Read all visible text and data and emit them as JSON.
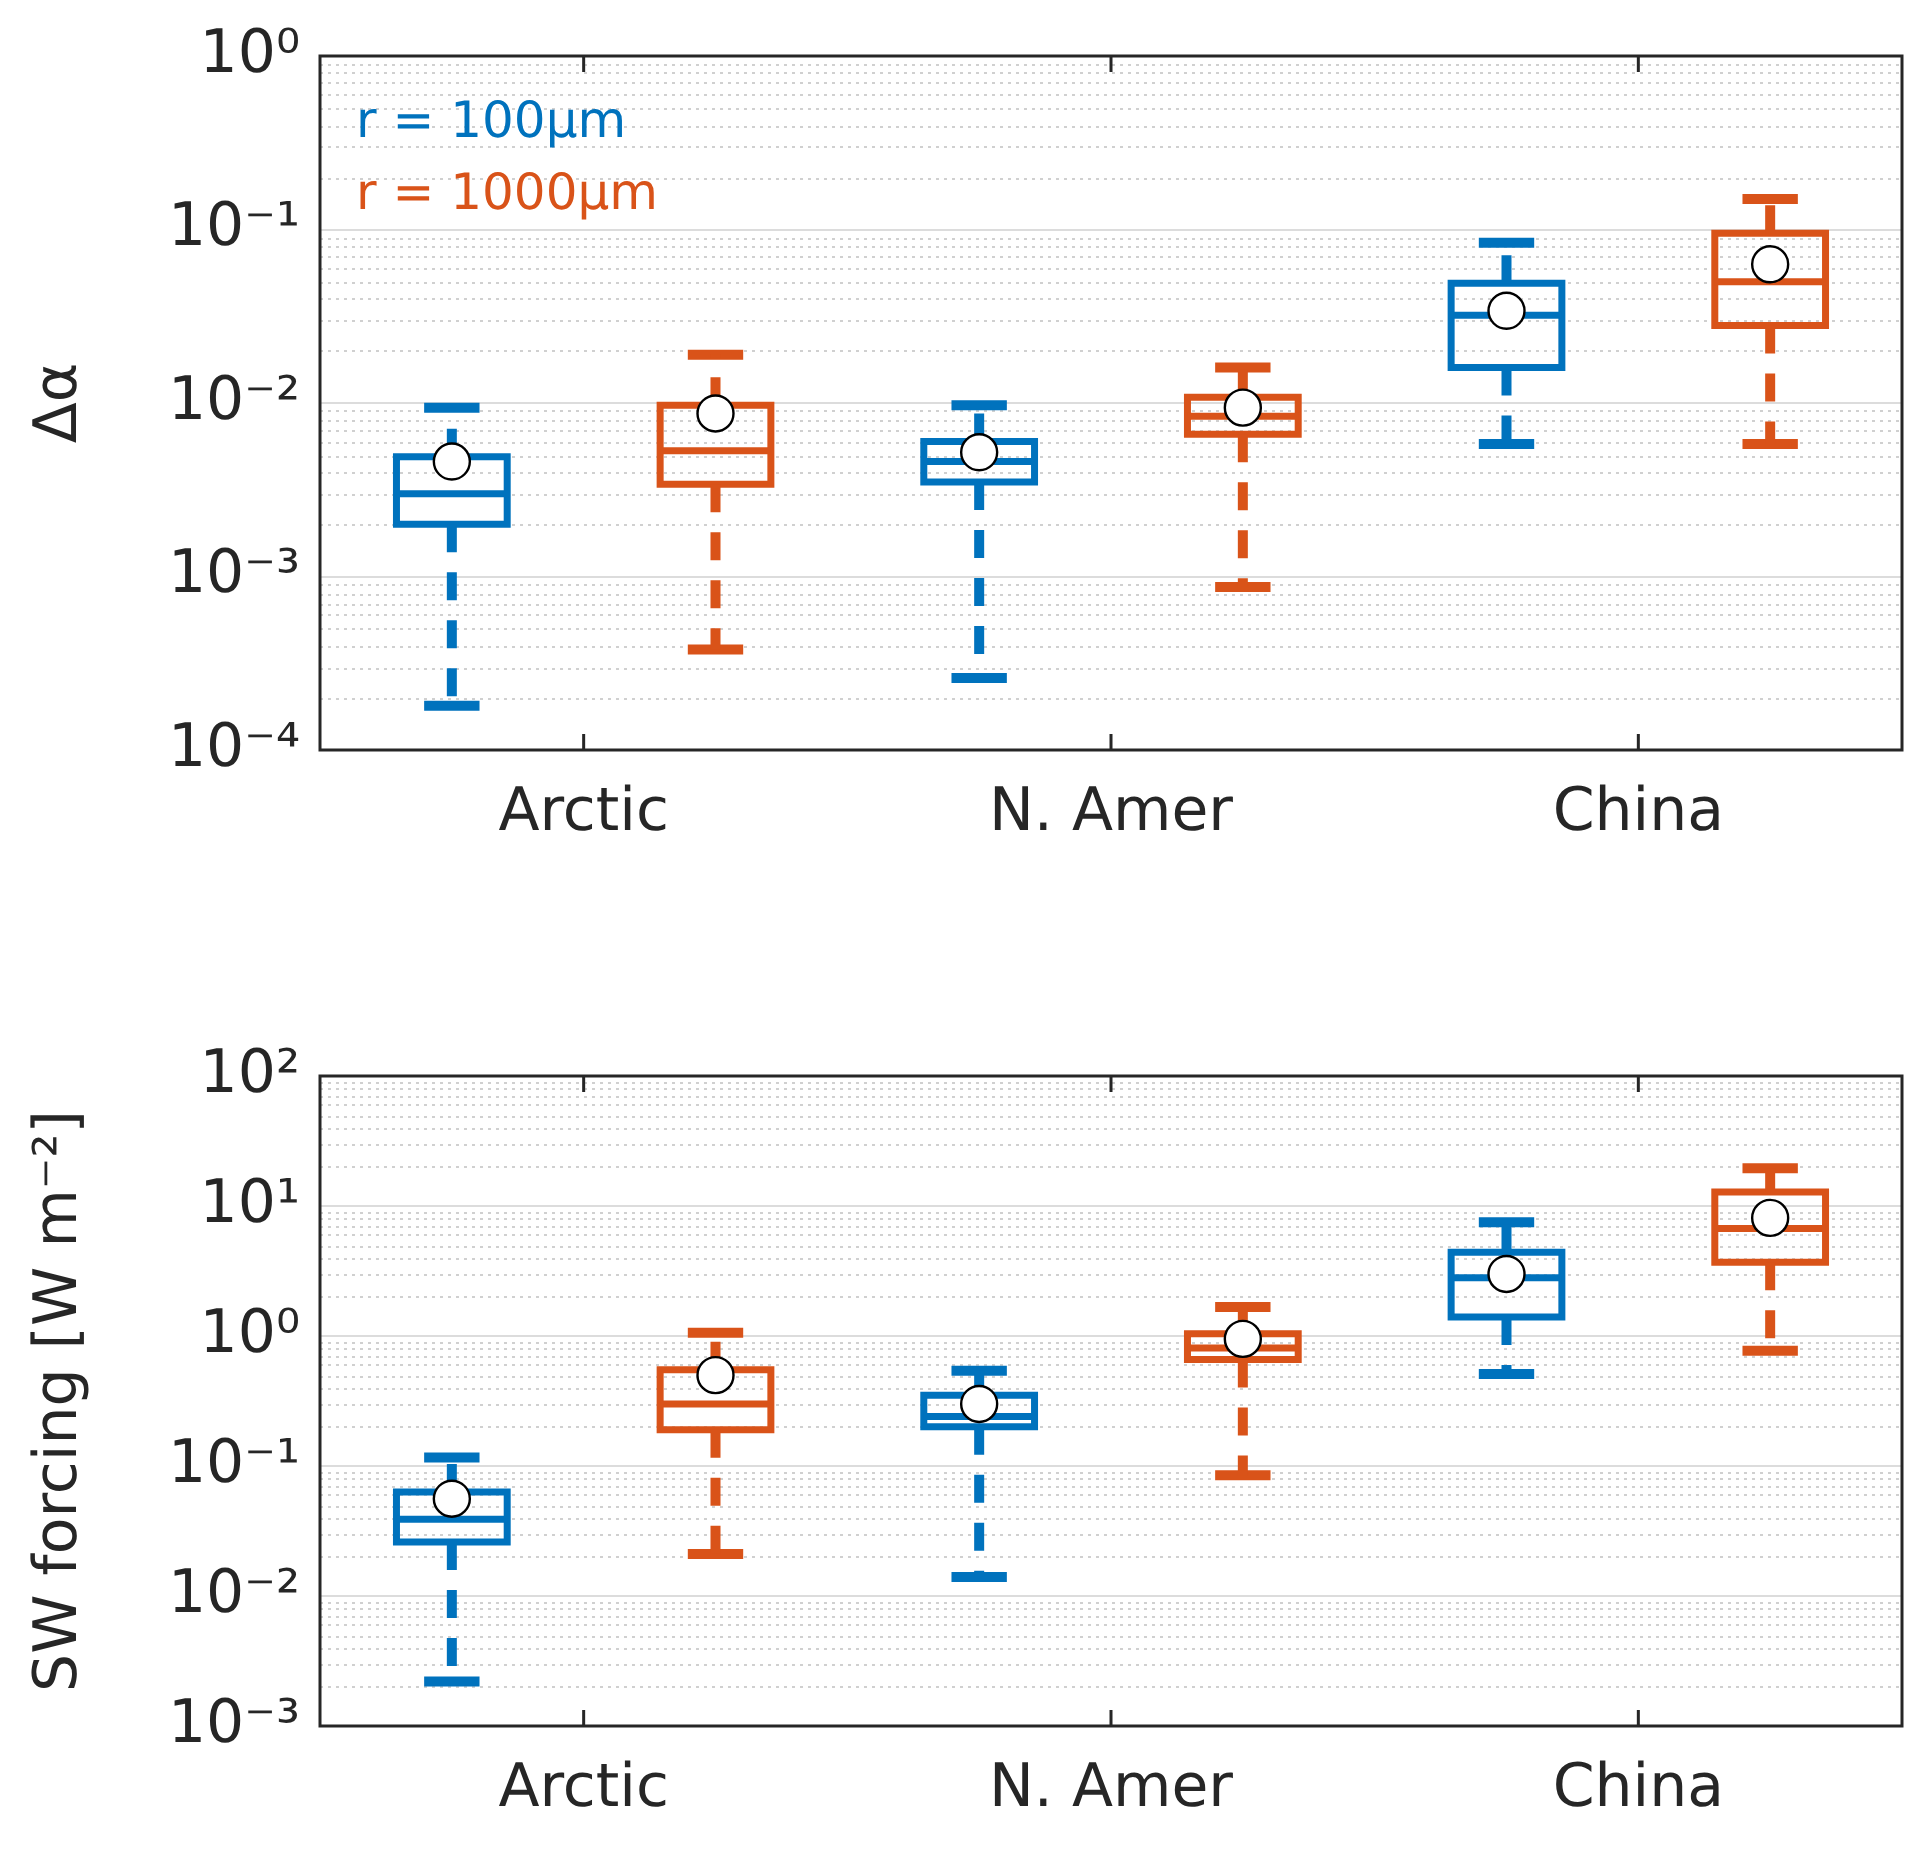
{
  "chart_data": [
    {
      "type": "box",
      "ylabel": "Δα",
      "categories": [
        "Arctic",
        "N. Amer",
        "China"
      ],
      "log": true,
      "grid": "y",
      "legend": "top left",
      "ylim": [
        0.0001,
        1
      ],
      "yticks": [
        {
          "value": 0.0001,
          "label": "10⁻⁴"
        },
        {
          "value": 0.001,
          "label": "10⁻³"
        },
        {
          "value": 0.01,
          "label": "10⁻²"
        },
        {
          "value": 0.1,
          "label": "10⁻¹"
        },
        {
          "value": 1,
          "label": "10⁰"
        }
      ],
      "series": [
        {
          "name": "r = 100μm",
          "color": "#0072bd",
          "boxes": [
            {
              "low": 0.00018,
              "q1": 0.002,
              "median": 0.003,
              "q3": 0.0049,
              "high": 0.0094,
              "mean": 0.0046
            },
            {
              "low": 0.00026,
              "q1": 0.0035,
              "median": 0.0046,
              "q3": 0.006,
              "high": 0.0097,
              "mean": 0.0052
            },
            {
              "low": 0.0058,
              "q1": 0.016,
              "median": 0.032,
              "q3": 0.049,
              "high": 0.084,
              "mean": 0.034
            }
          ]
        },
        {
          "name": "r = 1000μm",
          "color": "#d95319",
          "boxes": [
            {
              "low": 0.00038,
              "q1": 0.0034,
              "median": 0.0053,
              "q3": 0.0097,
              "high": 0.019,
              "mean": 0.0087
            },
            {
              "low": 0.00087,
              "q1": 0.0066,
              "median": 0.0084,
              "q3": 0.0108,
              "high": 0.016,
              "mean": 0.0094
            },
            {
              "low": 0.0058,
              "q1": 0.028,
              "median": 0.05,
              "q3": 0.095,
              "high": 0.15,
              "mean": 0.063
            }
          ]
        }
      ]
    },
    {
      "type": "box",
      "ylabel": "SW forcing [W m⁻²]",
      "categories": [
        "Arctic",
        "N. Amer",
        "China"
      ],
      "log": true,
      "grid": "y",
      "ylim": [
        0.001,
        100
      ],
      "yticks": [
        {
          "value": 0.001,
          "label": "10⁻³"
        },
        {
          "value": 0.01,
          "label": "10⁻²"
        },
        {
          "value": 0.1,
          "label": "10⁻¹"
        },
        {
          "value": 1,
          "label": "10⁰"
        },
        {
          "value": 10,
          "label": "10¹"
        },
        {
          "value": 100,
          "label": "10²"
        }
      ],
      "series": [
        {
          "color": "#0072bd",
          "boxes": [
            {
              "low": 0.0022,
              "q1": 0.026,
              "median": 0.039,
              "q3": 0.063,
              "high": 0.116,
              "mean": 0.056
            },
            {
              "low": 0.014,
              "q1": 0.2,
              "median": 0.24,
              "q3": 0.35,
              "high": 0.54,
              "mean": 0.3
            },
            {
              "low": 0.51,
              "q1": 1.4,
              "median": 2.8,
              "q3": 4.4,
              "high": 7.5,
              "mean": 3
            }
          ]
        },
        {
          "color": "#d95319",
          "boxes": [
            {
              "low": 0.021,
              "q1": 0.19,
              "median": 0.3,
              "q3": 0.55,
              "high": 1.06,
              "mean": 0.5
            },
            {
              "low": 0.085,
              "q1": 0.66,
              "median": 0.81,
              "q3": 1.04,
              "high": 1.67,
              "mean": 0.95
            },
            {
              "low": 0.77,
              "q1": 3.7,
              "median": 6.7,
              "q3": 12.8,
              "high": 19.5,
              "mean": 8.1
            }
          ]
        }
      ]
    }
  ]
}
